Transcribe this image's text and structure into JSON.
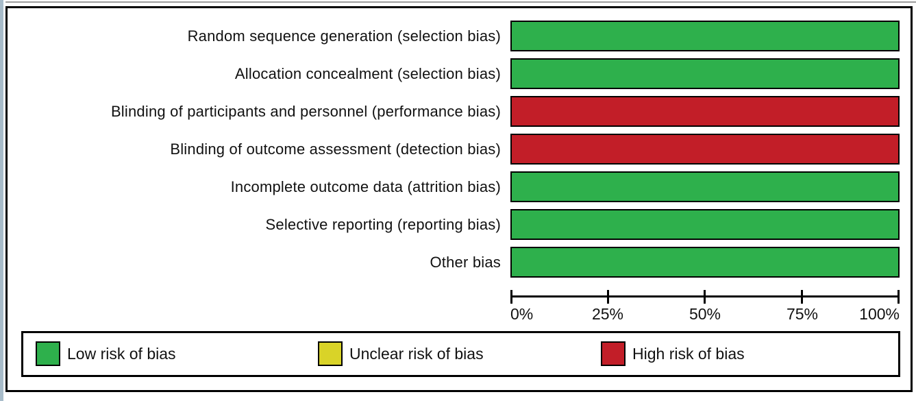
{
  "colors": {
    "low": "#2EB04C",
    "unclear": "#D9D328",
    "high": "#C21E28",
    "axis": "#000000",
    "frame": "#000000",
    "left_strip": "#A8BCCA"
  },
  "chart_data": {
    "type": "bar",
    "orientation": "horizontal",
    "title": "",
    "xlabel": "",
    "ylabel": "",
    "xlim": [
      0,
      100
    ],
    "grid": false,
    "legend_position": "bottom",
    "categories": [
      "Random sequence generation (selection bias)",
      "Allocation concealment (selection bias)",
      "Blinding of participants and personnel (performance bias)",
      "Blinding of outcome assessment (detection bias)",
      "Incomplete outcome data (attrition bias)",
      "Selective reporting (reporting bias)",
      "Other bias"
    ],
    "series": [
      {
        "name": "Low risk of bias",
        "color_key": "low",
        "values": [
          100,
          100,
          0,
          0,
          100,
          100,
          100
        ]
      },
      {
        "name": "Unclear risk of bias",
        "color_key": "unclear",
        "values": [
          0,
          0,
          0,
          0,
          0,
          0,
          0
        ]
      },
      {
        "name": "High risk of bias",
        "color_key": "high",
        "values": [
          0,
          0,
          100,
          100,
          0,
          0,
          0
        ]
      }
    ],
    "x_tick_labels": [
      "0%",
      "25%",
      "50%",
      "75%",
      "100%"
    ],
    "legend": {
      "items": [
        {
          "label": "Low risk of bias",
          "color_key": "low"
        },
        {
          "label": "Unclear risk of bias",
          "color_key": "unclear"
        },
        {
          "label": "High risk of bias",
          "color_key": "high"
        }
      ]
    }
  }
}
